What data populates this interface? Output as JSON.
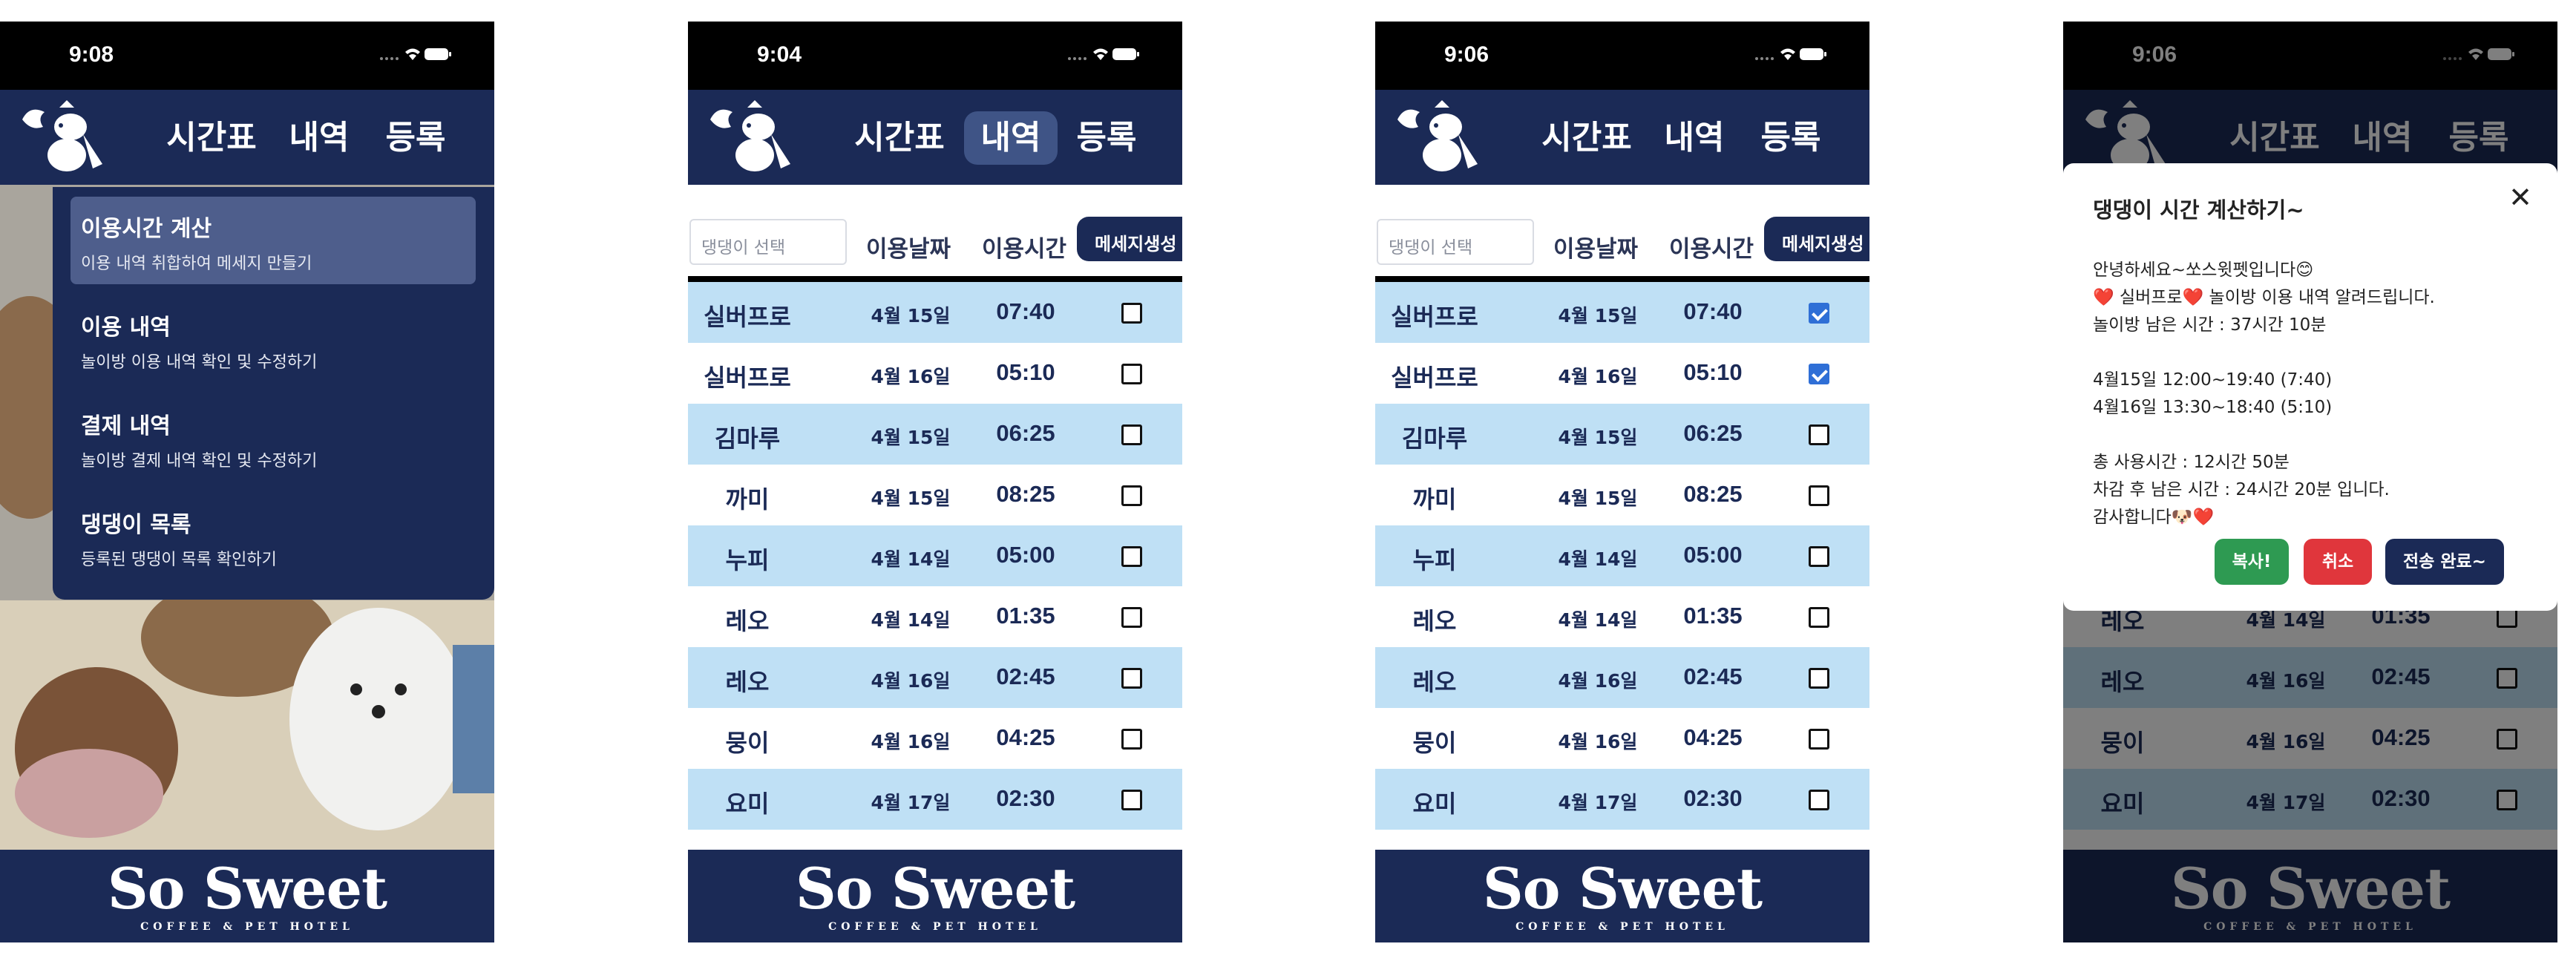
{
  "status_times": [
    "9:08",
    "9:04",
    "9:06",
    "9:06"
  ],
  "nav": {
    "timetable": "시간표",
    "history": "내역",
    "register": "등록"
  },
  "brand": {
    "title": "So Sweet",
    "subtitle": "COFFEE & PET HOTEL"
  },
  "menu": [
    {
      "title": "이용시간 계산",
      "desc": "이용 내역 취합하여 메세지 만들기",
      "active": true
    },
    {
      "title": "이용 내역",
      "desc": "놀이방 이용 내역 확인 및 수정하기",
      "active": false
    },
    {
      "title": "결제 내역",
      "desc": "놀이방 결제 내역 확인 및 수정하기",
      "active": false
    },
    {
      "title": "댕댕이 목록",
      "desc": "등록된 댕댕이 목록 확인하기",
      "active": false
    }
  ],
  "filter": {
    "dog_select_placeholder": "댕댕이 선택",
    "date_header": "이용날짜",
    "time_header": "이용시간",
    "generate_button": "메세지생성"
  },
  "rows": [
    {
      "name": "실버프로",
      "date": "4월 15일",
      "time": "07:40"
    },
    {
      "name": "실버프로",
      "date": "4월 16일",
      "time": "05:10"
    },
    {
      "name": "김마루",
      "date": "4월 15일",
      "time": "06:25"
    },
    {
      "name": "까미",
      "date": "4월 15일",
      "time": "08:25"
    },
    {
      "name": "누피",
      "date": "4월 14일",
      "time": "05:00"
    },
    {
      "name": "레오",
      "date": "4월 14일",
      "time": "01:35"
    },
    {
      "name": "레오",
      "date": "4월 16일",
      "time": "02:45"
    },
    {
      "name": "뭉이",
      "date": "4월 16일",
      "time": "04:25"
    },
    {
      "name": "요미",
      "date": "4월 17일",
      "time": "02:30"
    }
  ],
  "checked_rows_screen3": [
    0,
    1
  ],
  "modal": {
    "title": "댕댕이 시간 계산하기~",
    "close": "✕",
    "lines": [
      "안녕하세요~쏘스윗펫입니다😊",
      "❤️ 실버프로❤️ 놀이방 이용 내역 알려드립니다.",
      "놀이방 남은 시간 : 37시간 10분",
      "",
      "4월15일 12:00~19:40 (7:40)",
      "4월16일 13:30~18:40 (5:10)",
      "",
      "총 사용시간 : 12시간 50분",
      "차감 후 남은 시간 : 24시간 20분 입니다.",
      "감사합니다🐶❤️"
    ],
    "copy_button": "복사!",
    "cancel_button": "취소",
    "done_button": "전송 완료~"
  },
  "colors": {
    "navy": "#1b2a56",
    "row_blue": "#bfe0f5",
    "check_blue": "#2f6fd6",
    "copy_green": "#2e9a52",
    "cancel_red": "#e0363c"
  }
}
